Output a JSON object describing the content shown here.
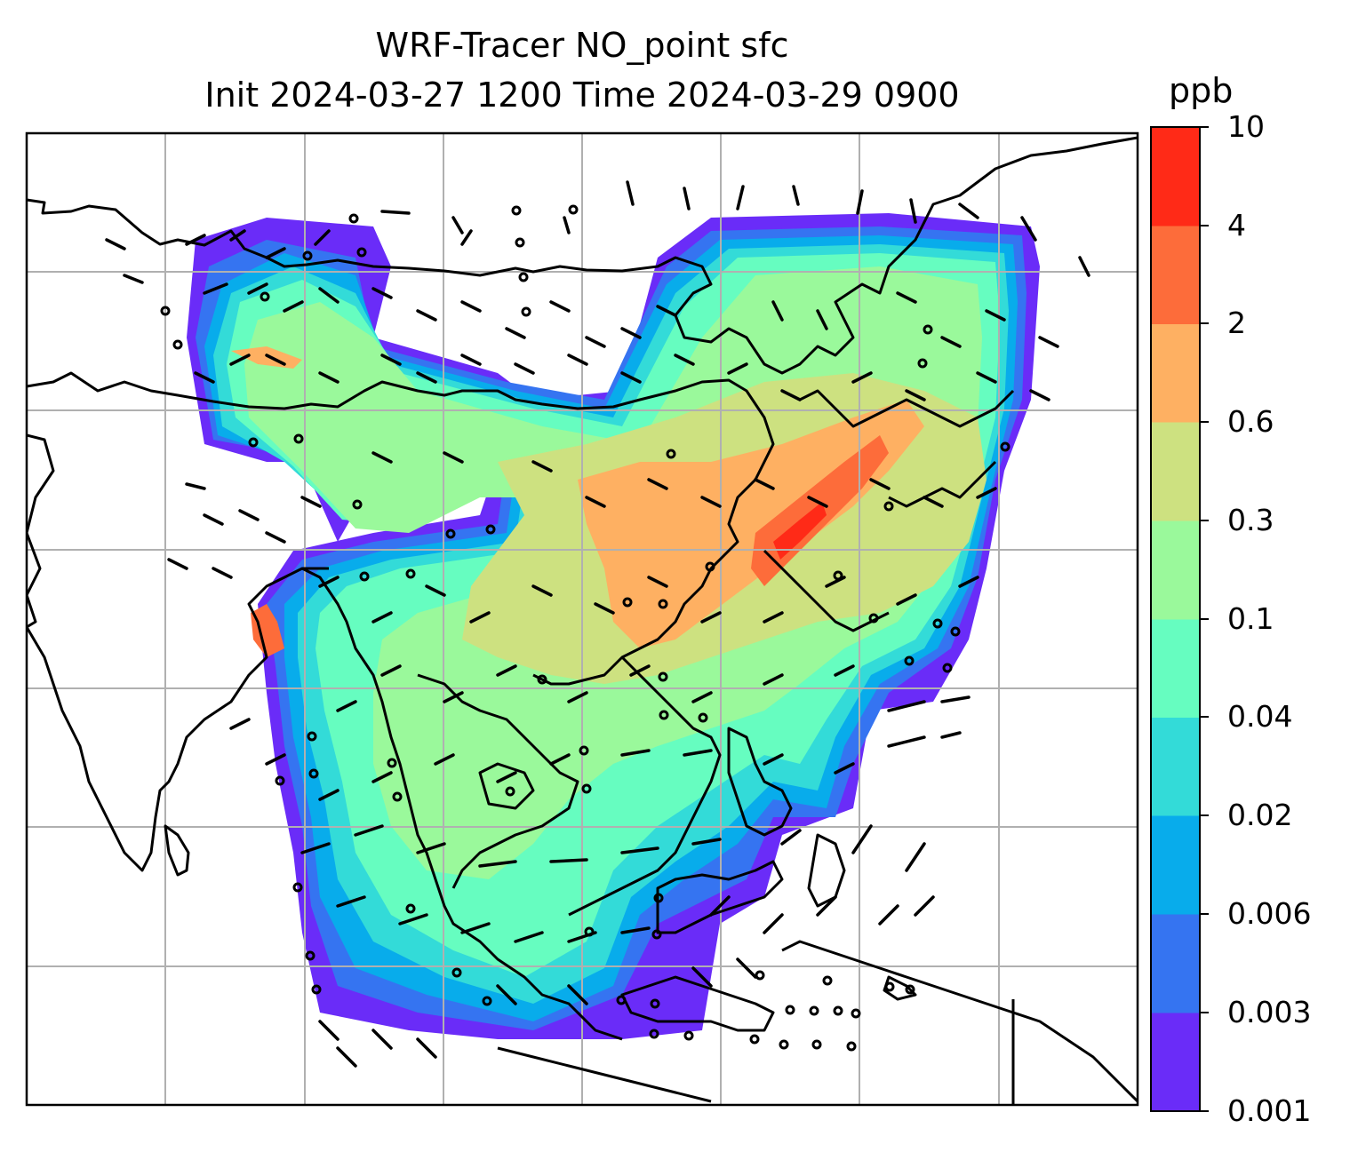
{
  "title": {
    "line1": "WRF-Tracer NO_point sfc",
    "line2": "Init 2024-03-27 1200 Time 2024-03-29 0900"
  },
  "colorbar": {
    "unit": "ppb",
    "levels": [
      "0.001",
      "0.003",
      "0.006",
      "0.02",
      "0.04",
      "0.1",
      "0.3",
      "0.6",
      "2",
      "4",
      "10"
    ],
    "colors": [
      "#6a2cf8",
      "#3574f1",
      "#08aceb",
      "#33dbd8",
      "#66fdc0",
      "#9af99b",
      "#cde180",
      "#feb062",
      "#fd6c3a",
      "#ff2a17"
    ]
  },
  "map": {
    "background": "#ffffff",
    "coastline_color": "#000000",
    "gridline_color": "#b0b0b0",
    "wind_barbs": "black"
  }
}
